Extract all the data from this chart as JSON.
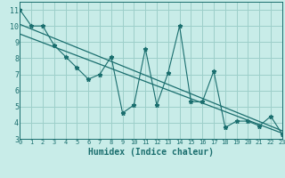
{
  "title": "",
  "xlabel": "Humidex (Indice chaleur)",
  "ylabel": "",
  "bg_color": "#c8ece8",
  "grid_color": "#9dcfca",
  "line_color": "#1a6e6e",
  "x_data": [
    0,
    1,
    2,
    3,
    4,
    5,
    6,
    7,
    8,
    9,
    10,
    11,
    12,
    13,
    14,
    15,
    16,
    17,
    18,
    19,
    20,
    21,
    22,
    23
  ],
  "y_data": [
    11,
    10,
    10,
    8.8,
    8.1,
    7.4,
    6.7,
    7.0,
    8.1,
    4.6,
    5.1,
    8.6,
    5.1,
    7.1,
    10.0,
    5.3,
    5.3,
    7.2,
    3.7,
    4.1,
    4.1,
    3.8,
    4.4,
    3.3
  ],
  "trend1_start": 10.1,
  "trend1_end": 3.5,
  "trend2_start": 9.5,
  "trend2_end": 3.35,
  "xlim": [
    0,
    23
  ],
  "ylim": [
    3,
    11.5
  ],
  "yticks": [
    3,
    4,
    5,
    6,
    7,
    8,
    9,
    10,
    11
  ],
  "xticks": [
    0,
    1,
    2,
    3,
    4,
    5,
    6,
    7,
    8,
    9,
    10,
    11,
    12,
    13,
    14,
    15,
    16,
    17,
    18,
    19,
    20,
    21,
    22,
    23
  ],
  "marker_size": 3.5,
  "xlabel_fontsize": 7,
  "tick_fontsize": 5
}
